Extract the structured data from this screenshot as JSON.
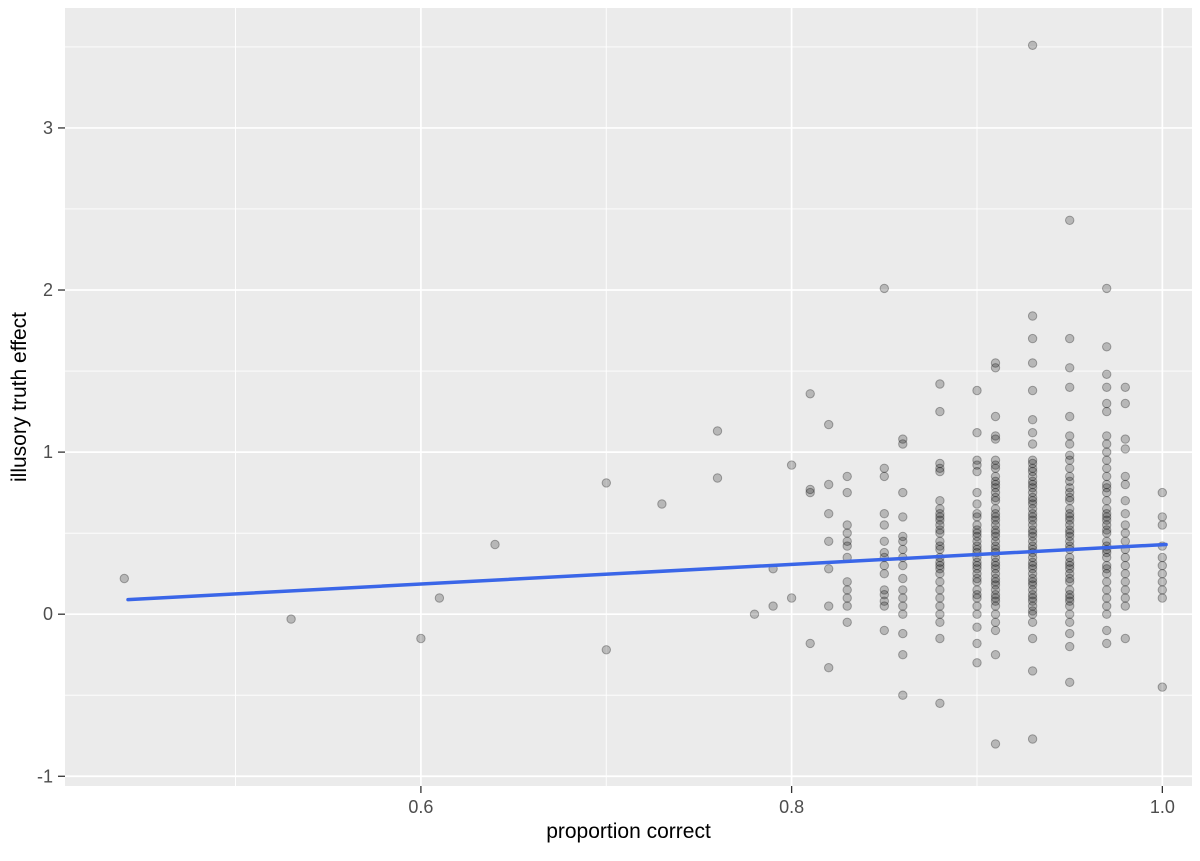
{
  "chart_data": {
    "type": "scatter",
    "title": "",
    "xlabel": "proportion correct",
    "ylabel": "illusory truth effect",
    "x_ticks": [
      0.6,
      0.8,
      1.0
    ],
    "x_tick_labels": [
      "0.6",
      "0.8",
      "1.0"
    ],
    "x_minor_ticks": [
      0.5,
      0.7,
      0.9
    ],
    "y_ticks": [
      -1,
      0,
      1,
      2,
      3
    ],
    "y_tick_labels": [
      "-1",
      "0",
      "1",
      "2",
      "3"
    ],
    "y_minor_ticks": [
      -0.5,
      0.5,
      1.5,
      2.5,
      3.5
    ],
    "xlim": [
      0.408,
      1.016
    ],
    "ylim": [
      -1.06,
      3.74
    ],
    "grid": true,
    "legend": "none",
    "panel_bg": "#EBEBEB",
    "grid_color": "#FFFFFF",
    "tick_color": "#333333",
    "tick_label_color": "#4D4D4D",
    "point_color": "#000000",
    "point_opacity": 0.22,
    "trend": {
      "type": "linear",
      "x1": 0.442,
      "y1": 0.09,
      "x2": 1.002,
      "y2": 0.43,
      "color": "#3A66E8",
      "width": 3.5
    },
    "columns": [
      {
        "x": 0.44,
        "ys": [
          0.22
        ]
      },
      {
        "x": 0.53,
        "ys": [
          -0.03
        ]
      },
      {
        "x": 0.6,
        "ys": [
          -0.15
        ]
      },
      {
        "x": 0.61,
        "ys": [
          0.1
        ]
      },
      {
        "x": 0.64,
        "ys": [
          0.43
        ]
      },
      {
        "x": 0.7,
        "ys": [
          0.81,
          -0.22
        ]
      },
      {
        "x": 0.73,
        "ys": [
          0.68
        ]
      },
      {
        "x": 0.76,
        "ys": [
          1.13,
          0.84
        ]
      },
      {
        "x": 0.78,
        "ys": [
          0.0
        ]
      },
      {
        "x": 0.79,
        "ys": [
          0.28,
          0.05
        ]
      },
      {
        "x": 0.8,
        "ys": [
          0.92,
          0.1
        ]
      },
      {
        "x": 0.81,
        "ys": [
          1.36,
          0.77,
          0.75,
          -0.18
        ]
      },
      {
        "x": 0.82,
        "ys": [
          1.17,
          0.8,
          0.62,
          0.45,
          0.28,
          0.05,
          -0.33
        ]
      },
      {
        "x": 0.83,
        "ys": [
          0.85,
          0.75,
          0.55,
          0.5,
          0.45,
          0.42,
          0.35,
          0.2,
          0.15,
          0.1,
          0.05,
          -0.05
        ]
      },
      {
        "x": 0.85,
        "ys": [
          2.01,
          0.9,
          0.85,
          0.62,
          0.55,
          0.45,
          0.38,
          0.35,
          0.3,
          0.25,
          0.15,
          0.12,
          0.08,
          0.05,
          -0.1
        ]
      },
      {
        "x": 0.86,
        "ys": [
          1.08,
          1.05,
          0.75,
          0.6,
          0.48,
          0.45,
          0.4,
          0.35,
          0.3,
          0.22,
          0.15,
          0.1,
          0.05,
          0.0,
          -0.12,
          -0.25,
          -0.5
        ]
      },
      {
        "x": 0.88,
        "ys": [
          1.42,
          1.25,
          0.93,
          0.9,
          0.88,
          0.7,
          0.65,
          0.62,
          0.6,
          0.58,
          0.55,
          0.52,
          0.5,
          0.45,
          0.42,
          0.4,
          0.35,
          0.32,
          0.3,
          0.28,
          0.25,
          0.2,
          0.15,
          0.1,
          0.05,
          0.0,
          -0.05,
          -0.15,
          -0.55
        ]
      },
      {
        "x": 0.9,
        "ys": [
          1.38,
          1.12,
          0.95,
          0.92,
          0.88,
          0.75,
          0.68,
          0.62,
          0.6,
          0.55,
          0.52,
          0.5,
          0.48,
          0.45,
          0.42,
          0.4,
          0.38,
          0.35,
          0.32,
          0.3,
          0.28,
          0.25,
          0.22,
          0.2,
          0.15,
          0.12,
          0.1,
          0.05,
          0.0,
          -0.08,
          -0.18,
          -0.3
        ]
      },
      {
        "x": 0.91,
        "ys": [
          1.55,
          1.52,
          1.22,
          1.1,
          1.08,
          0.95,
          0.92,
          0.9,
          0.85,
          0.82,
          0.8,
          0.78,
          0.75,
          0.72,
          0.7,
          0.65,
          0.62,
          0.6,
          0.58,
          0.55,
          0.52,
          0.5,
          0.48,
          0.45,
          0.42,
          0.4,
          0.38,
          0.35,
          0.32,
          0.3,
          0.28,
          0.25,
          0.22,
          0.2,
          0.18,
          0.15,
          0.12,
          0.1,
          0.08,
          0.05,
          0.0,
          -0.05,
          -0.1,
          -0.25,
          -0.8
        ]
      },
      {
        "x": 0.93,
        "ys": [
          3.51,
          1.84,
          1.7,
          1.55,
          1.38,
          1.2,
          1.12,
          1.05,
          0.95,
          0.93,
          0.9,
          0.88,
          0.85,
          0.82,
          0.8,
          0.78,
          0.75,
          0.72,
          0.7,
          0.68,
          0.65,
          0.62,
          0.6,
          0.58,
          0.55,
          0.52,
          0.5,
          0.48,
          0.45,
          0.42,
          0.4,
          0.38,
          0.35,
          0.32,
          0.3,
          0.28,
          0.25,
          0.22,
          0.2,
          0.18,
          0.15,
          0.12,
          0.1,
          0.08,
          0.05,
          0.02,
          0.0,
          -0.05,
          -0.15,
          -0.35,
          -0.77
        ]
      },
      {
        "x": 0.95,
        "ys": [
          2.43,
          1.7,
          1.52,
          1.4,
          1.22,
          1.1,
          1.05,
          0.98,
          0.95,
          0.9,
          0.85,
          0.82,
          0.78,
          0.75,
          0.72,
          0.7,
          0.65,
          0.62,
          0.6,
          0.58,
          0.55,
          0.52,
          0.5,
          0.48,
          0.45,
          0.42,
          0.4,
          0.35,
          0.32,
          0.3,
          0.28,
          0.25,
          0.22,
          0.2,
          0.15,
          0.12,
          0.1,
          0.08,
          0.05,
          0.0,
          -0.05,
          -0.12,
          -0.2,
          -0.42
        ]
      },
      {
        "x": 0.97,
        "ys": [
          2.01,
          1.65,
          1.48,
          1.4,
          1.3,
          1.25,
          1.1,
          1.05,
          1.0,
          0.95,
          0.9,
          0.85,
          0.8,
          0.78,
          0.75,
          0.7,
          0.65,
          0.62,
          0.6,
          0.58,
          0.55,
          0.52,
          0.5,
          0.45,
          0.42,
          0.4,
          0.38,
          0.35,
          0.3,
          0.28,
          0.25,
          0.2,
          0.15,
          0.1,
          0.05,
          0.0,
          -0.1,
          -0.18
        ]
      },
      {
        "x": 0.98,
        "ys": [
          1.4,
          1.3,
          1.08,
          1.02,
          0.85,
          0.8,
          0.7,
          0.62,
          0.55,
          0.5,
          0.45,
          0.4,
          0.35,
          0.3,
          0.25,
          0.2,
          0.15,
          0.1,
          0.05,
          -0.15
        ]
      },
      {
        "x": 1.0,
        "ys": [
          0.75,
          0.6,
          0.55,
          0.42,
          0.35,
          0.3,
          0.25,
          0.2,
          0.15,
          0.1,
          -0.45
        ]
      }
    ]
  }
}
